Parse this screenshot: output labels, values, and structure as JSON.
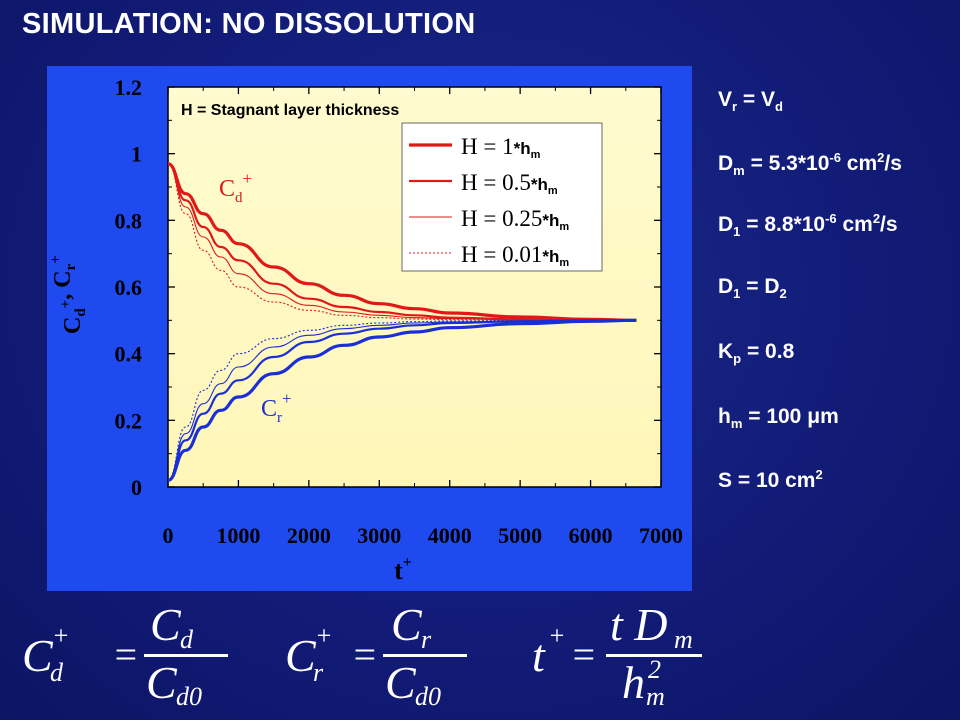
{
  "slide": {
    "title": "SIMULATION: NO DISSOLUTION",
    "note": "H = Stagnant layer thickness"
  },
  "colors": {
    "background": "#121c78",
    "plot_frame": "#1f4af0",
    "plot_area": "#fffbd0",
    "cd_series": "#e11818",
    "cr_series": "#1a2fd6",
    "text": "#ffffff"
  },
  "chart_data": {
    "type": "line",
    "title": "",
    "xlabel": "t+",
    "ylabel": "Cd+, Cr+",
    "xlim": [
      0,
      7000
    ],
    "ylim": [
      0,
      1.2
    ],
    "x_ticks": [
      "0",
      "1000",
      "2000",
      "3000",
      "4000",
      "5000",
      "6000",
      "7000"
    ],
    "y_ticks": [
      "0",
      "0.2",
      "0.4",
      "0.6",
      "0.8",
      "1",
      "1.2"
    ],
    "grid": false,
    "legend_position": "top-right",
    "annotations": [
      "Cd+",
      "Cr+"
    ],
    "legend": [
      {
        "label": "H = 1*hm",
        "line_style": "solid-thick"
      },
      {
        "label": "H = 0.5*hm",
        "line_style": "solid-medium"
      },
      {
        "label": "H = 0.25*hm",
        "line_style": "solid-thin"
      },
      {
        "label": "H = 0.01*hm",
        "line_style": "dotted"
      }
    ],
    "x": [
      0,
      250,
      500,
      750,
      1000,
      1500,
      2000,
      2500,
      3000,
      3500,
      4000,
      5000,
      6000,
      6650
    ],
    "series": [
      {
        "name": "Cd+ (H = 1*hm)",
        "values": [
          0.97,
          0.88,
          0.82,
          0.77,
          0.73,
          0.66,
          0.61,
          0.575,
          0.55,
          0.535,
          0.522,
          0.51,
          0.503,
          0.5
        ]
      },
      {
        "name": "Cd+ (H = 0.5*hm)",
        "values": [
          0.97,
          0.86,
          0.78,
          0.72,
          0.68,
          0.61,
          0.565,
          0.54,
          0.525,
          0.515,
          0.508,
          0.503,
          0.5,
          0.5
        ]
      },
      {
        "name": "Cd+ (H = 0.25*hm)",
        "values": [
          0.97,
          0.84,
          0.75,
          0.69,
          0.64,
          0.58,
          0.545,
          0.525,
          0.515,
          0.508,
          0.505,
          0.502,
          0.5,
          0.5
        ]
      },
      {
        "name": "Cd+ (H = 0.01*hm)",
        "values": [
          0.97,
          0.82,
          0.71,
          0.65,
          0.6,
          0.555,
          0.53,
          0.515,
          0.508,
          0.504,
          0.502,
          0.501,
          0.5,
          0.5
        ]
      },
      {
        "name": "Cr+ (H = 1*hm)",
        "values": [
          0.02,
          0.11,
          0.18,
          0.23,
          0.27,
          0.34,
          0.39,
          0.425,
          0.45,
          0.465,
          0.478,
          0.49,
          0.497,
          0.5
        ]
      },
      {
        "name": "Cr+ (H = 0.5*hm)",
        "values": [
          0.02,
          0.14,
          0.22,
          0.28,
          0.32,
          0.39,
          0.435,
          0.46,
          0.475,
          0.485,
          0.492,
          0.497,
          0.5,
          0.5
        ]
      },
      {
        "name": "Cr+ (H = 0.25*hm)",
        "values": [
          0.02,
          0.16,
          0.25,
          0.31,
          0.36,
          0.42,
          0.455,
          0.475,
          0.485,
          0.492,
          0.495,
          0.498,
          0.5,
          0.5
        ]
      },
      {
        "name": "Cr+ (H = 0.01*hm)",
        "values": [
          0.02,
          0.18,
          0.29,
          0.35,
          0.4,
          0.445,
          0.47,
          0.485,
          0.492,
          0.496,
          0.498,
          0.499,
          0.5,
          0.5
        ]
      }
    ]
  },
  "params": {
    "vr_vd": {
      "a": "V",
      "a_sub": "r",
      "mid": " = V",
      "b_sub": "d"
    },
    "dm": {
      "a": "D",
      "a_sub": "m",
      "mid": " = 5.3*10",
      "exp": "-6",
      "unit": " cm",
      "unit_sup": "2",
      "tail": "/s"
    },
    "d1": {
      "a": "D",
      "a_sub": "1",
      "mid": " = 8.8*10",
      "exp": "-6",
      "unit": " cm",
      "unit_sup": "2",
      "tail": "/s"
    },
    "d1_d2": {
      "a": "D",
      "a_sub": "1",
      "mid": " = D",
      "b_sub": "2"
    },
    "kp": {
      "a": "K",
      "a_sub": "p",
      "mid": " = 0.8"
    },
    "hm": {
      "a": "h",
      "a_sub": "m",
      "mid": " = 100 ",
      "mu": "μ",
      "tail": "m"
    },
    "s": {
      "a": "S = 10 cm",
      "sup": "2"
    }
  },
  "equations": {
    "cd": {
      "lhs": "C",
      "lhs_sub": "d",
      "sup": "+",
      "num": "C",
      "num_sub": "d",
      "den": "C",
      "den_sub": "d0"
    },
    "cr": {
      "lhs": "C",
      "lhs_sub": "r",
      "sup": "+",
      "num": "C",
      "num_sub": "r",
      "den": "C",
      "den_sub": "d0"
    },
    "t": {
      "lhs": "t",
      "sup": "+",
      "num": "t D",
      "num_sub": "m",
      "den": "h",
      "den_sub": "m",
      "den_sup": "2"
    },
    "equals": "="
  }
}
